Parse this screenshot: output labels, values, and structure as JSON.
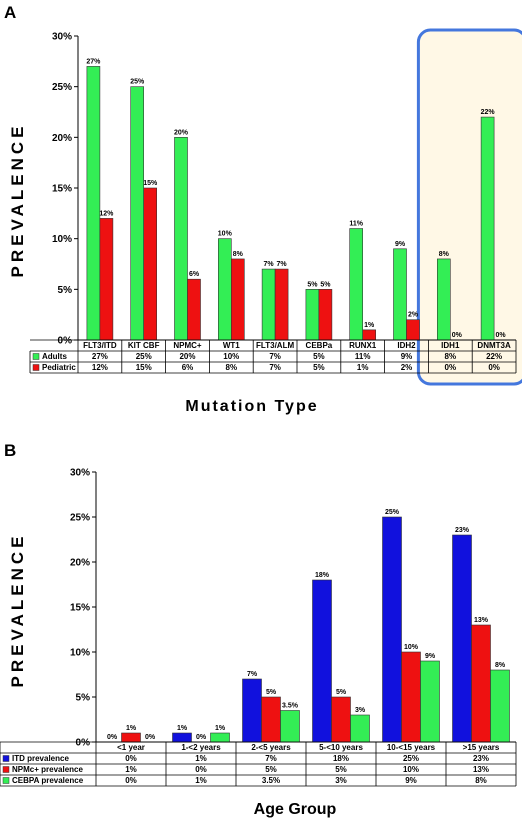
{
  "colors": {
    "adults": "#33ee55",
    "pediatric": "#ee1111",
    "itd": "#1111dd",
    "npmc": "#ee1111",
    "cebpa": "#33ee55",
    "highlight_border": "#4477dd",
    "highlight_fill": "#fff8e6"
  },
  "chart_data": [
    {
      "panel": "A",
      "type": "bar",
      "categories": [
        "FLT3/ITD",
        "KIT CBF",
        "NPMC+",
        "WT1",
        "FLT3/ALM",
        "CEBPa",
        "RUNX1",
        "IDH2",
        "IDH1",
        "DNMT3A"
      ],
      "series": [
        {
          "name": "Adults",
          "values": [
            27,
            25,
            20,
            10,
            7,
            5,
            11,
            9,
            8,
            22
          ],
          "labels": [
            "27%",
            "25%",
            "20%",
            "10%",
            "7%",
            "5%",
            "11%",
            "9%",
            "8%",
            "22%"
          ]
        },
        {
          "name": "Pediatric",
          "values": [
            12,
            15,
            6,
            8,
            7,
            5,
            1,
            2,
            0,
            0
          ],
          "labels": [
            "12%",
            "15%",
            "6%",
            "8%",
            "7%",
            "5%",
            "1%",
            "2%",
            "0%",
            "0%"
          ]
        }
      ],
      "yticks": [
        "0%",
        "5%",
        "10%",
        "15%",
        "20%",
        "25%",
        "30%"
      ],
      "ylim": [
        0,
        30
      ],
      "ylabel": "PREVALENCE",
      "xlabel": "Mutation Type",
      "highlighted_categories": [
        "IDH1",
        "DNMT3A"
      ],
      "legend": "data table below chart"
    },
    {
      "panel": "B",
      "type": "bar",
      "categories": [
        "<1 year",
        "1-<2 years",
        "2-<5 years",
        "5-<10 years",
        "10-<15 years",
        ">15 years"
      ],
      "series": [
        {
          "name": "ITD prevalence",
          "values": [
            0,
            1,
            7,
            18,
            25,
            23
          ],
          "labels": [
            "0%",
            "1%",
            "7%",
            "18%",
            "25%",
            "23%"
          ]
        },
        {
          "name": "NPMc+ prevalence",
          "values": [
            1,
            0,
            5,
            5,
            10,
            13
          ],
          "labels": [
            "1%",
            "0%",
            "5%",
            "5%",
            "10%",
            "13%"
          ]
        },
        {
          "name": "CEBPA  prevalence",
          "values": [
            0,
            1,
            3.5,
            3,
            9,
            8
          ],
          "labels": [
            "0%",
            "1%",
            "3.5%",
            "3%",
            "9%",
            "8%"
          ]
        }
      ],
      "yticks": [
        "0%",
        "5%",
        "10%",
        "15%",
        "20%",
        "25%",
        "30%"
      ],
      "ylim": [
        0,
        30
      ],
      "ylabel": "PREVALENCE",
      "xlabel": "Age Group",
      "legend": "data table below chart"
    }
  ]
}
